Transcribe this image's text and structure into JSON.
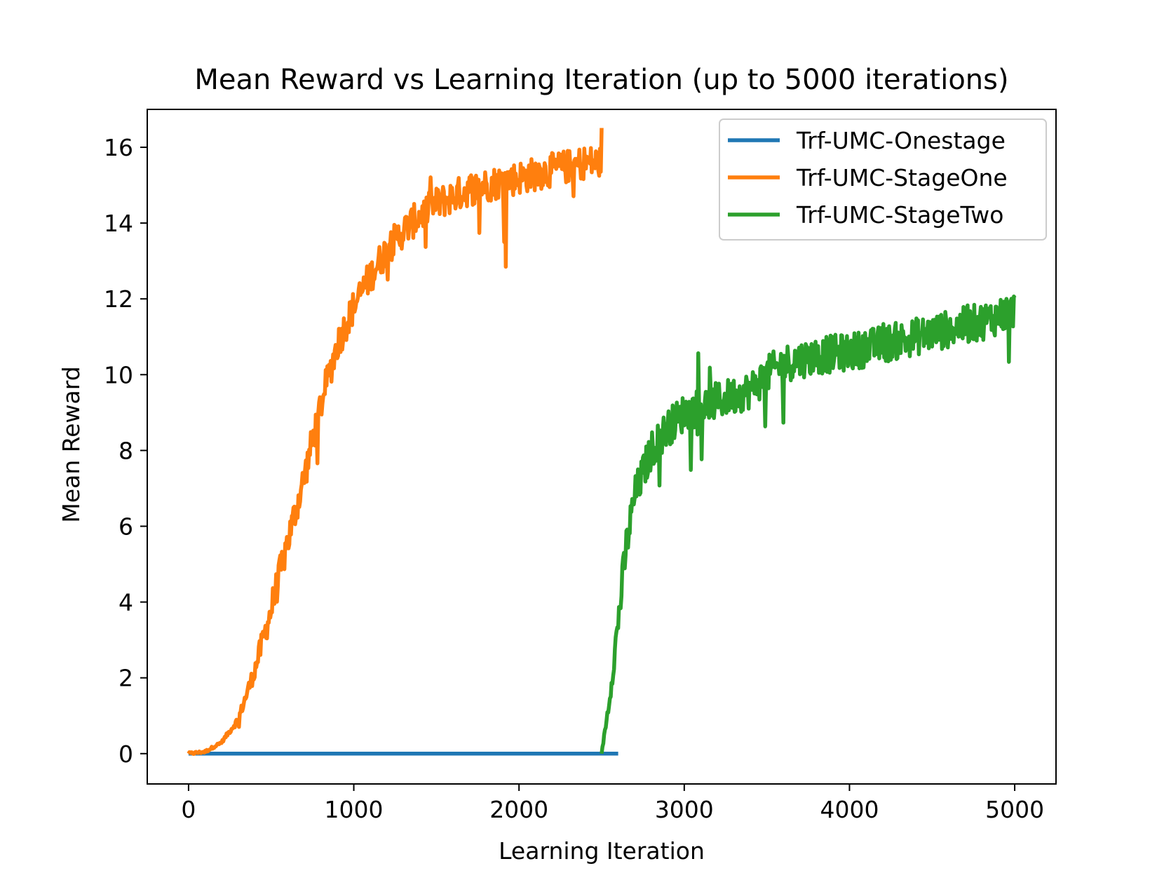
{
  "chart_data": {
    "type": "line",
    "title": "Mean Reward vs Learning Iteration (up to 5000 iterations)",
    "xlabel": "Learning Iteration",
    "ylabel": "Mean Reward",
    "xlim": [
      -250,
      5250
    ],
    "ylim": [
      -0.8,
      17
    ],
    "xticks": [
      0,
      1000,
      2000,
      3000,
      4000,
      5000
    ],
    "yticks": [
      0,
      2,
      4,
      6,
      8,
      10,
      12,
      14,
      16
    ],
    "xtick_labels": [
      "0",
      "1000",
      "2000",
      "3000",
      "4000",
      "5000"
    ],
    "ytick_labels": [
      "0",
      "2",
      "4",
      "6",
      "8",
      "10",
      "12",
      "14",
      "16"
    ],
    "grid": false,
    "legend_position": "upper right",
    "series": [
      {
        "name": "Trf-UMC-Onestage",
        "color": "#1f77b4",
        "x": [
          0,
          500,
          1000,
          1500,
          2000,
          2500,
          2600
        ],
        "y": [
          0,
          0,
          0,
          0,
          0,
          0,
          0
        ],
        "noise": 0
      },
      {
        "name": "Trf-UMC-StageOne",
        "color": "#ff7f0e",
        "x": [
          0,
          100,
          200,
          300,
          400,
          500,
          600,
          700,
          800,
          900,
          1000,
          1100,
          1200,
          1300,
          1400,
          1500,
          1600,
          1700,
          1800,
          1900,
          2000,
          2100,
          2200,
          2300,
          2400,
          2500
        ],
        "y": [
          0,
          0.05,
          0.3,
          0.9,
          2.2,
          3.8,
          5.6,
          7.3,
          9.2,
          10.8,
          11.8,
          12.6,
          13.3,
          13.8,
          14.2,
          14.5,
          14.7,
          14.9,
          15.0,
          15.1,
          15.2,
          15.3,
          15.4,
          15.5,
          15.6,
          15.6
        ],
        "noise": 0.45
      },
      {
        "name": "Trf-UMC-StageTwo",
        "color": "#2ca02c",
        "x": [
          2500,
          2550,
          2600,
          2650,
          2700,
          2800,
          2900,
          3000,
          3200,
          3400,
          3500,
          3600,
          3800,
          4000,
          4200,
          4400,
          4600,
          4800,
          5000
        ],
        "y": [
          0,
          1.5,
          3.5,
          5.5,
          6.8,
          8.0,
          8.6,
          9.0,
          9.3,
          9.6,
          10.0,
          10.3,
          10.5,
          10.6,
          10.8,
          11.0,
          11.2,
          11.4,
          11.7
        ],
        "noise": 0.5
      }
    ]
  }
}
